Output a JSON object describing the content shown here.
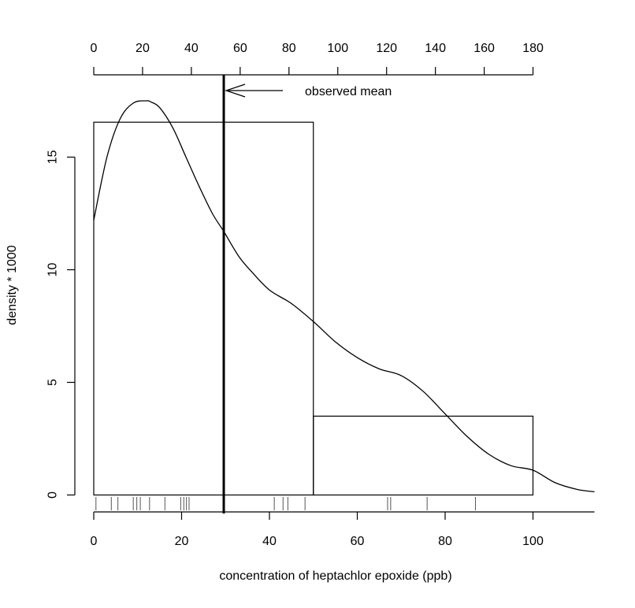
{
  "chart_data": {
    "type": "histogram",
    "xlabel": "concentration of heptachlor epoxide (ppb)",
    "ylabel": "density * 1000",
    "xlim": [
      0,
      114
    ],
    "ylim": [
      0,
      17.5
    ],
    "bottom_axis": {
      "ticks": [
        0,
        20,
        40,
        60,
        80,
        100
      ],
      "tick_labels": [
        "0",
        "20",
        "40",
        "60",
        "80",
        "100"
      ]
    },
    "top_axis": {
      "ticks": [
        0,
        20,
        40,
        60,
        80,
        100,
        120,
        140,
        160,
        180
      ],
      "tick_labels": [
        "0",
        "20",
        "40",
        "60",
        "80",
        "100",
        "120",
        "140",
        "160",
        "180"
      ],
      "scale_factor": 0.5556
    },
    "left_axis": {
      "ticks": [
        0,
        5,
        10,
        15
      ],
      "tick_labels": [
        "0",
        "5",
        "10",
        "15"
      ]
    },
    "bins": [
      {
        "x0": 0,
        "x1": 50,
        "density": 16.55
      },
      {
        "x0": 50,
        "x1": 100,
        "density": 3.5
      }
    ],
    "density_curve": {
      "x": [
        0,
        3,
        6,
        9,
        12,
        13,
        15,
        18,
        21,
        24,
        27,
        29.6,
        33,
        36,
        40,
        45,
        50,
        55,
        60,
        65,
        70,
        75,
        80,
        85,
        90,
        95,
        100,
        105,
        110,
        114
      ],
      "y": [
        12.2,
        15.0,
        16.7,
        17.4,
        17.5,
        17.45,
        17.2,
        16.3,
        15.0,
        13.7,
        12.5,
        11.7,
        10.6,
        9.9,
        9.1,
        8.5,
        7.7,
        6.8,
        6.1,
        5.6,
        5.3,
        4.6,
        3.6,
        2.6,
        1.8,
        1.3,
        1.1,
        0.55,
        0.25,
        0.14
      ]
    },
    "rug": [
      0.5,
      4.0,
      5.5,
      9.0,
      9.8,
      10.6,
      12.7,
      16.2,
      19.8,
      20.5,
      21.1,
      21.7,
      41.1,
      43.1,
      44.2,
      48.1,
      66.9,
      67.6,
      75.9,
      86.9
    ],
    "mean_line": {
      "x": 29.6,
      "label": "observed mean"
    },
    "grid": false,
    "legend": "none"
  }
}
